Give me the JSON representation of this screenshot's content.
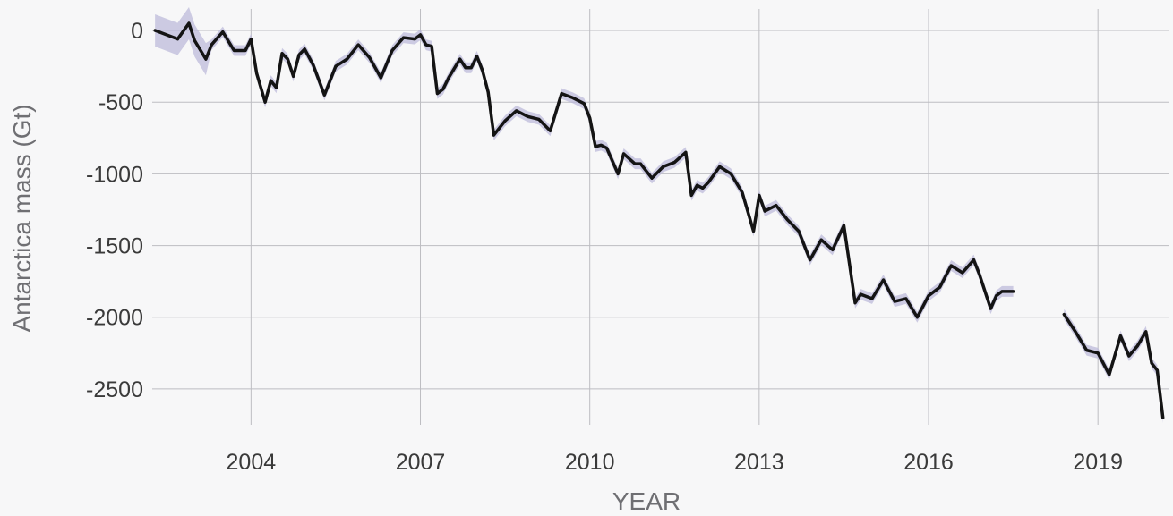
{
  "chart_data": {
    "type": "line",
    "title": "",
    "xlabel": "YEAR",
    "ylabel": "Antarctica mass (Gt)",
    "xlim": [
      2002.25,
      2020.25
    ],
    "ylim": [
      -2750,
      150
    ],
    "x_ticks": [
      2004,
      2007,
      2010,
      2013,
      2016,
      2019
    ],
    "y_ticks": [
      0,
      -500,
      -1000,
      -1500,
      -2000,
      -2500
    ],
    "grid": true,
    "legend": "none",
    "line_color": "#141414",
    "band_color": "#b9b7d8",
    "series": [
      {
        "x": [
          2002.3,
          2002.7,
          2002.9,
          2003.0,
          2003.2,
          2003.3,
          2003.5,
          2003.7,
          2003.9,
          2004.0,
          2004.1,
          2004.25,
          2004.35,
          2004.45,
          2004.55,
          2004.65,
          2004.75,
          2004.85,
          2004.95,
          2005.1,
          2005.3,
          2005.5,
          2005.7,
          2005.9,
          2006.1,
          2006.3,
          2006.5,
          2006.7,
          2006.9,
          2007.0,
          2007.1,
          2007.2,
          2007.3,
          2007.4,
          2007.5,
          2007.7,
          2007.8,
          2007.9,
          2008.0,
          2008.1,
          2008.2,
          2008.3,
          2008.5,
          2008.7,
          2008.9,
          2009.1,
          2009.3,
          2009.5,
          2009.7,
          2009.9,
          2010.0,
          2010.1,
          2010.2,
          2010.3,
          2010.5,
          2010.6,
          2010.8,
          2010.9,
          2011.1,
          2011.3,
          2011.5,
          2011.7,
          2011.8,
          2011.9,
          2012.0,
          2012.1,
          2012.3,
          2012.5,
          2012.7,
          2012.9,
          2013.0,
          2013.1,
          2013.3,
          2013.5,
          2013.7,
          2013.9,
          2014.1,
          2014.3,
          2014.5,
          2014.7,
          2014.8,
          2015.0,
          2015.2,
          2015.4,
          2015.6,
          2015.8,
          2016.0,
          2016.2,
          2016.4,
          2016.6,
          2016.8,
          2016.9,
          2017.1,
          2017.2,
          2017.3,
          2017.45,
          2017.5
        ],
        "y": [
          0,
          -60,
          50,
          -70,
          -200,
          -100,
          -10,
          -140,
          -140,
          -60,
          -300,
          -500,
          -350,
          -400,
          -160,
          -200,
          -320,
          -170,
          -130,
          -240,
          -450,
          -250,
          -200,
          -100,
          -190,
          -330,
          -140,
          -50,
          -60,
          -30,
          -100,
          -110,
          -440,
          -410,
          -330,
          -200,
          -260,
          -260,
          -180,
          -280,
          -430,
          -730,
          -630,
          -560,
          -600,
          -620,
          -700,
          -440,
          -470,
          -510,
          -610,
          -810,
          -800,
          -820,
          -1000,
          -860,
          -930,
          -930,
          -1030,
          -950,
          -920,
          -850,
          -1150,
          -1080,
          -1100,
          -1060,
          -950,
          -1000,
          -1130,
          -1400,
          -1150,
          -1260,
          -1220,
          -1320,
          -1400,
          -1600,
          -1460,
          -1530,
          -1360,
          -1900,
          -1840,
          -1870,
          -1740,
          -1890,
          -1870,
          -2000,
          -1850,
          -1790,
          -1640,
          -1690,
          -1600,
          -1700,
          -1940,
          -1850,
          -1820,
          -1820,
          -1820
        ]
      },
      {
        "x": [
          2018.4,
          2018.6,
          2018.8,
          2019.0,
          2019.2,
          2019.4,
          2019.55,
          2019.7,
          2019.85,
          2019.95,
          2020.05,
          2020.15
        ],
        "y": [
          -1980,
          -2100,
          -2230,
          -2250,
          -2400,
          -2130,
          -2270,
          -2200,
          -2100,
          -2320,
          -2370,
          -2700
        ]
      }
    ]
  }
}
